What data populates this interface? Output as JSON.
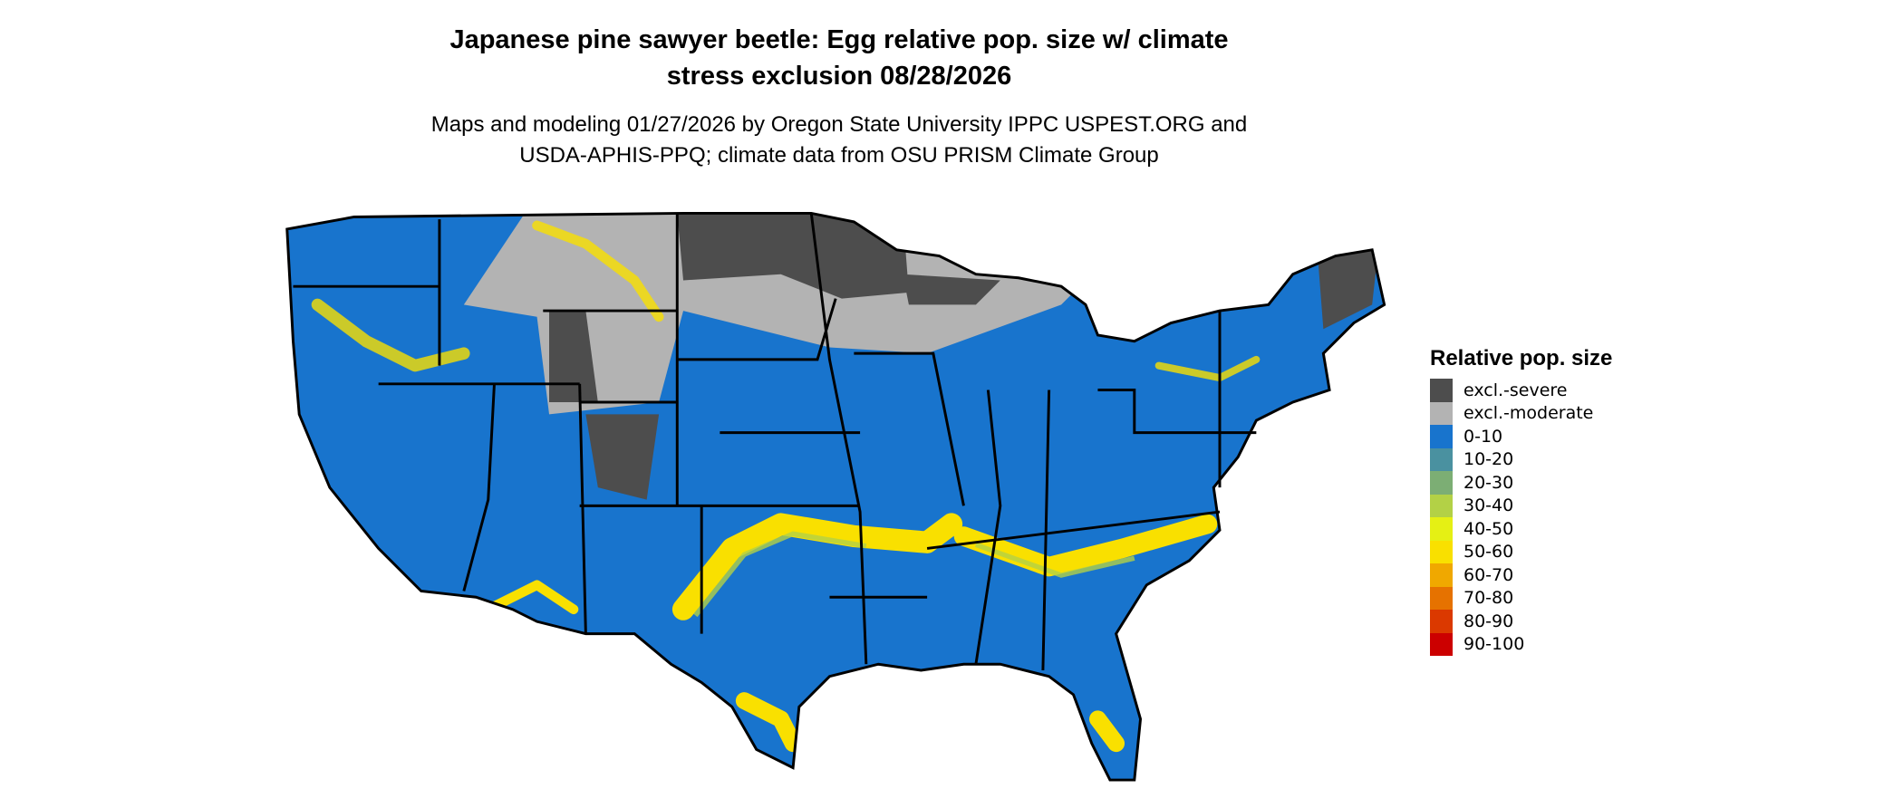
{
  "title_line1": "Japanese pine sawyer beetle: Egg relative pop. size w/ climate",
  "title_line2": "stress exclusion 08/28/2026",
  "subtitle_line1": "Maps and modeling 01/27/2026 by Oregon State University IPPC USPEST.ORG and",
  "subtitle_line2": "USDA-APHIS-PPQ; climate data from OSU PRISM Climate Group",
  "legend": {
    "title": "Relative pop. size",
    "items": [
      {
        "label": "excl.-severe",
        "color": "#4d4d4d"
      },
      {
        "label": "excl.-moderate",
        "color": "#b3b3b3"
      },
      {
        "label": "0-10",
        "color": "#1874cd"
      },
      {
        "label": "10-20",
        "color": "#4a91a0"
      },
      {
        "label": "20-30",
        "color": "#7cae74"
      },
      {
        "label": "30-40",
        "color": "#b3d146"
      },
      {
        "label": "40-50",
        "color": "#e5f014"
      },
      {
        "label": "50-60",
        "color": "#f9e000"
      },
      {
        "label": "60-70",
        "color": "#f0a800"
      },
      {
        "label": "70-80",
        "color": "#e67200"
      },
      {
        "label": "80-90",
        "color": "#db3900"
      },
      {
        "label": "90-100",
        "color": "#cc0000"
      }
    ]
  }
}
